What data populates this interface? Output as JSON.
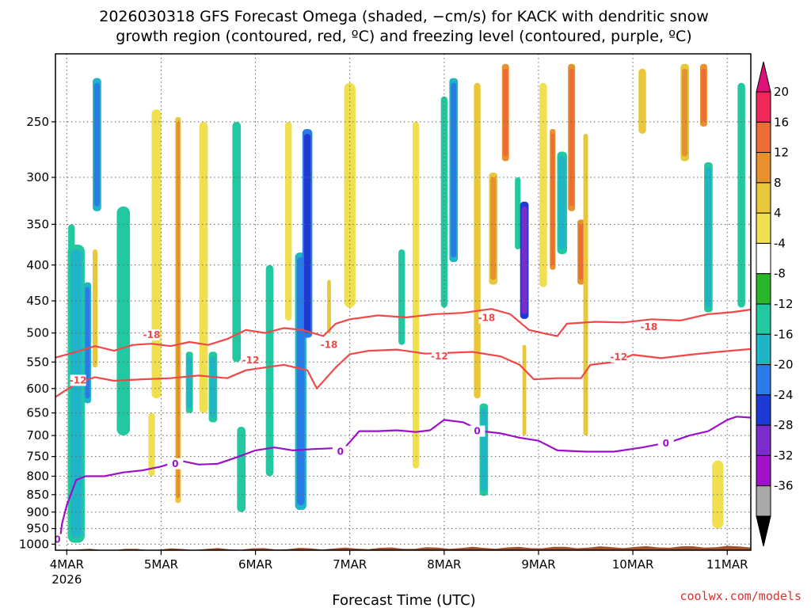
{
  "title_line1": "2026030318 GFS Forecast Omega (shaded, −cm/s) for KACK with dendritic snow",
  "title_line2": "growth region (contoured, red, ºC) and freezing level (contoured, purple, ºC)",
  "credit": "coolwx.com/models",
  "colors": {
    "dgz_contour": "#f04848",
    "freezing_contour": "#9b10c8",
    "ground": "#a0522d",
    "credit": "#e0302e"
  },
  "chart_data": {
    "type": "heatmap",
    "xlabel": "Forecast Time (UTC)",
    "ylabel": "",
    "x_ticks": [
      {
        "label": "4MAR",
        "sub": "2026",
        "day": 0
      },
      {
        "label": "5MAR",
        "sub": "",
        "day": 1
      },
      {
        "label": "6MAR",
        "sub": "",
        "day": 2
      },
      {
        "label": "7MAR",
        "sub": "",
        "day": 3
      },
      {
        "label": "8MAR",
        "sub": "",
        "day": 4
      },
      {
        "label": "9MAR",
        "sub": "",
        "day": 5
      },
      {
        "label": "10MAR",
        "sub": "",
        "day": 6
      },
      {
        "label": "11MAR",
        "sub": "",
        "day": 7
      }
    ],
    "xlim_days": [
      -0.12,
      7.25
    ],
    "y_ticks": [
      250,
      300,
      350,
      400,
      450,
      500,
      550,
      600,
      650,
      700,
      750,
      800,
      850,
      900,
      950,
      1000
    ],
    "ylim_hpa": [
      200,
      1020
    ],
    "y_scale": "log-pressure",
    "grid": true,
    "colorbar": {
      "labels": [
        20,
        16,
        12,
        8,
        4,
        -4,
        -8,
        -12,
        -16,
        -20,
        -24,
        -28,
        -32,
        -36
      ],
      "bands": [
        {
          "min": 16,
          "max": 20,
          "color": "#f0285a"
        },
        {
          "min": 12,
          "max": 16,
          "color": "#ec6e36"
        },
        {
          "min": 8,
          "max": 12,
          "color": "#e8902e"
        },
        {
          "min": 4,
          "max": 8,
          "color": "#e8c83a"
        },
        {
          "min": 0,
          "max": 4,
          "color": "#f0e050"
        },
        {
          "min": -4,
          "max": 4,
          "color": "#ffffff"
        },
        {
          "min": -8,
          "max": -4,
          "color": "#2ab62a"
        },
        {
          "min": -12,
          "max": -8,
          "color": "#22c8a0"
        },
        {
          "min": -16,
          "max": -12,
          "color": "#20b4c8"
        },
        {
          "min": -20,
          "max": -16,
          "color": "#2a7ae8"
        },
        {
          "min": -24,
          "max": -20,
          "color": "#1e3ad4"
        },
        {
          "min": -28,
          "max": -24,
          "color": "#7a2ccc"
        },
        {
          "min": -32,
          "max": -28,
          "color": "#a012c8"
        },
        {
          "min": -36,
          "max": -32,
          "color": "#aaaaaa"
        }
      ],
      "top_cap_color": "#e0107a",
      "bottom_cap_color": "#000000"
    },
    "contours": [
      {
        "label": "-18",
        "color": "#f04848",
        "label_positions": [
          [
            0.9,
            503
          ],
          [
            2.78,
            520
          ],
          [
            4.45,
            476
          ],
          [
            6.17,
            490
          ]
        ],
        "points": [
          [
            -0.12,
            542
          ],
          [
            0.1,
            532
          ],
          [
            0.3,
            522
          ],
          [
            0.5,
            530
          ],
          [
            0.7,
            520
          ],
          [
            0.9,
            518
          ],
          [
            1.1,
            522
          ],
          [
            1.3,
            515
          ],
          [
            1.5,
            520
          ],
          [
            1.7,
            510
          ],
          [
            1.9,
            495
          ],
          [
            2.1,
            500
          ],
          [
            2.3,
            492
          ],
          [
            2.5,
            495
          ],
          [
            2.72,
            505
          ],
          [
            2.85,
            485
          ],
          [
            3.0,
            478
          ],
          [
            3.3,
            472
          ],
          [
            3.6,
            475
          ],
          [
            3.9,
            470
          ],
          [
            4.2,
            468
          ],
          [
            4.5,
            462
          ],
          [
            4.7,
            470
          ],
          [
            4.9,
            495
          ],
          [
            5.1,
            502
          ],
          [
            5.2,
            505
          ],
          [
            5.3,
            485
          ],
          [
            5.6,
            482
          ],
          [
            5.9,
            483
          ],
          [
            6.2,
            478
          ],
          [
            6.5,
            480
          ],
          [
            6.8,
            470
          ],
          [
            7.05,
            467
          ],
          [
            7.25,
            463
          ]
        ]
      },
      {
        "label": "-12",
        "color": "#f04848",
        "label_positions": [
          [
            0.12,
            584
          ],
          [
            1.95,
            547
          ],
          [
            3.95,
            540
          ],
          [
            5.85,
            541
          ]
        ],
        "points": [
          [
            -0.12,
            617
          ],
          [
            0.1,
            590
          ],
          [
            0.3,
            578
          ],
          [
            0.5,
            585
          ],
          [
            0.8,
            582
          ],
          [
            1.1,
            580
          ],
          [
            1.4,
            575
          ],
          [
            1.7,
            580
          ],
          [
            1.9,
            565
          ],
          [
            2.1,
            560
          ],
          [
            2.3,
            555
          ],
          [
            2.55,
            565
          ],
          [
            2.65,
            600
          ],
          [
            2.85,
            560
          ],
          [
            3.0,
            536
          ],
          [
            3.2,
            530
          ],
          [
            3.5,
            528
          ],
          [
            3.8,
            535
          ],
          [
            4.0,
            534
          ],
          [
            4.3,
            532
          ],
          [
            4.6,
            540
          ],
          [
            4.8,
            555
          ],
          [
            4.95,
            582
          ],
          [
            5.2,
            580
          ],
          [
            5.45,
            580
          ],
          [
            5.55,
            555
          ],
          [
            5.8,
            550
          ],
          [
            6.0,
            537
          ],
          [
            6.3,
            543
          ],
          [
            6.6,
            537
          ],
          [
            6.9,
            532
          ],
          [
            7.25,
            527
          ]
        ]
      },
      {
        "label": "0",
        "color": "#9b10c8",
        "label_positions": [
          [
            -0.1,
            985
          ],
          [
            1.15,
            768
          ],
          [
            2.9,
            738
          ],
          [
            4.35,
            690
          ],
          [
            6.35,
            718
          ]
        ],
        "points": [
          [
            -0.08,
            1005
          ],
          [
            -0.05,
            935
          ],
          [
            0.0,
            880
          ],
          [
            0.1,
            810
          ],
          [
            0.2,
            800
          ],
          [
            0.4,
            800
          ],
          [
            0.6,
            790
          ],
          [
            0.8,
            785
          ],
          [
            1.0,
            775
          ],
          [
            1.2,
            760
          ],
          [
            1.4,
            770
          ],
          [
            1.6,
            768
          ],
          [
            1.8,
            752
          ],
          [
            2.0,
            735
          ],
          [
            2.2,
            728
          ],
          [
            2.4,
            735
          ],
          [
            2.6,
            732
          ],
          [
            2.8,
            730
          ],
          [
            2.95,
            728
          ],
          [
            3.1,
            690
          ],
          [
            3.3,
            690
          ],
          [
            3.5,
            688
          ],
          [
            3.7,
            692
          ],
          [
            3.85,
            688
          ],
          [
            4.0,
            665
          ],
          [
            4.2,
            670
          ],
          [
            4.4,
            690
          ],
          [
            4.6,
            695
          ],
          [
            4.8,
            705
          ],
          [
            5.0,
            712
          ],
          [
            5.2,
            735
          ],
          [
            5.5,
            738
          ],
          [
            5.8,
            738
          ],
          [
            6.1,
            728
          ],
          [
            6.4,
            715
          ],
          [
            6.6,
            700
          ],
          [
            6.8,
            690
          ],
          [
            7.0,
            665
          ],
          [
            7.1,
            658
          ],
          [
            7.25,
            660
          ]
        ]
      }
    ],
    "omega_features": [
      {
        "day": 0.05,
        "p_top": 350,
        "p_bot": 930,
        "width_days": 0.07,
        "level": -8
      },
      {
        "day": 0.1,
        "p_top": 380,
        "p_bot": 980,
        "width_days": 0.12,
        "level": -12
      },
      {
        "day": 0.22,
        "p_top": 430,
        "p_bot": 620,
        "width_days": 0.05,
        "level": -16
      },
      {
        "day": 0.32,
        "p_top": 220,
        "p_bot": 330,
        "width_days": 0.06,
        "level": -16
      },
      {
        "day": 0.3,
        "p_top": 380,
        "p_bot": 560,
        "width_days": 0.05,
        "level": 8
      },
      {
        "day": 0.6,
        "p_top": 330,
        "p_bot": 700,
        "width_days": 0.14,
        "level": -8
      },
      {
        "day": 0.95,
        "p_top": 240,
        "p_bot": 620,
        "width_days": 0.1,
        "level": 4
      },
      {
        "day": 1.18,
        "p_top": 250,
        "p_bot": 860,
        "width_days": 0.04,
        "level": 12
      },
      {
        "day": 1.3,
        "p_top": 540,
        "p_bot": 640,
        "width_days": 0.05,
        "level": -12
      },
      {
        "day": 1.45,
        "p_top": 250,
        "p_bot": 650,
        "width_days": 0.09,
        "level": 4
      },
      {
        "day": 1.55,
        "p_top": 540,
        "p_bot": 660,
        "width_days": 0.06,
        "level": -12
      },
      {
        "day": 1.8,
        "p_top": 250,
        "p_bot": 550,
        "width_days": 0.09,
        "level": -8
      },
      {
        "day": 2.15,
        "p_top": 400,
        "p_bot": 800,
        "width_days": 0.08,
        "level": -8
      },
      {
        "day": 2.35,
        "p_top": 250,
        "p_bot": 480,
        "width_days": 0.07,
        "level": 4
      },
      {
        "day": 2.48,
        "p_top": 390,
        "p_bot": 880,
        "width_days": 0.08,
        "level": -16
      },
      {
        "day": 2.55,
        "p_top": 260,
        "p_bot": 500,
        "width_days": 0.07,
        "level": -20
      },
      {
        "day": 2.78,
        "p_top": 420,
        "p_bot": 500,
        "width_days": 0.04,
        "level": 8
      },
      {
        "day": 3.0,
        "p_top": 220,
        "p_bot": 460,
        "width_days": 0.12,
        "level": 4
      },
      {
        "day": 3.55,
        "p_top": 380,
        "p_bot": 520,
        "width_days": 0.07,
        "level": -8
      },
      {
        "day": 3.7,
        "p_top": 250,
        "p_bot": 780,
        "width_days": 0.07,
        "level": 4
      },
      {
        "day": 4.0,
        "p_top": 230,
        "p_bot": 460,
        "width_days": 0.07,
        "level": -8
      },
      {
        "day": 4.1,
        "p_top": 220,
        "p_bot": 390,
        "width_days": 0.06,
        "level": -16
      },
      {
        "day": 4.35,
        "p_top": 220,
        "p_bot": 620,
        "width_days": 0.07,
        "level": 8
      },
      {
        "day": 4.42,
        "p_top": 640,
        "p_bot": 840,
        "width_days": 0.06,
        "level": -12
      },
      {
        "day": 4.52,
        "p_top": 300,
        "p_bot": 420,
        "width_days": 0.06,
        "level": 12
      },
      {
        "day": 4.65,
        "p_top": 210,
        "p_bot": 280,
        "width_days": 0.05,
        "level": 16
      },
      {
        "day": 4.78,
        "p_top": 300,
        "p_bot": 380,
        "width_days": 0.06,
        "level": -8
      },
      {
        "day": 4.85,
        "p_top": 330,
        "p_bot": 470,
        "width_days": 0.06,
        "level": -24
      },
      {
        "day": 4.85,
        "p_top": 520,
        "p_bot": 700,
        "width_days": 0.04,
        "level": 8
      },
      {
        "day": 5.05,
        "p_top": 220,
        "p_bot": 430,
        "width_days": 0.08,
        "level": 4
      },
      {
        "day": 5.15,
        "p_top": 260,
        "p_bot": 400,
        "width_days": 0.04,
        "level": 16
      },
      {
        "day": 5.25,
        "p_top": 280,
        "p_bot": 380,
        "width_days": 0.07,
        "level": -12
      },
      {
        "day": 5.35,
        "p_top": 210,
        "p_bot": 330,
        "width_days": 0.05,
        "level": 16
      },
      {
        "day": 5.45,
        "p_top": 350,
        "p_bot": 420,
        "width_days": 0.05,
        "level": 16
      },
      {
        "day": 5.5,
        "p_top": 260,
        "p_bot": 700,
        "width_days": 0.05,
        "level": 8
      },
      {
        "day": 6.1,
        "p_top": 210,
        "p_bot": 260,
        "width_days": 0.08,
        "level": 8
      },
      {
        "day": 6.55,
        "p_top": 210,
        "p_bot": 280,
        "width_days": 0.06,
        "level": 12
      },
      {
        "day": 6.75,
        "p_top": 210,
        "p_bot": 250,
        "width_days": 0.05,
        "level": 16
      },
      {
        "day": 6.8,
        "p_top": 290,
        "p_bot": 460,
        "width_days": 0.06,
        "level": -12
      },
      {
        "day": 7.15,
        "p_top": 220,
        "p_bot": 460,
        "width_days": 0.08,
        "level": -8
      },
      {
        "day": 6.9,
        "p_top": 760,
        "p_bot": 950,
        "width_days": 0.12,
        "level": 4
      },
      {
        "day": 1.85,
        "p_top": 680,
        "p_bot": 900,
        "width_days": 0.09,
        "level": -8
      },
      {
        "day": 0.9,
        "p_top": 650,
        "p_bot": 800,
        "width_days": 0.07,
        "level": 4
      }
    ]
  }
}
